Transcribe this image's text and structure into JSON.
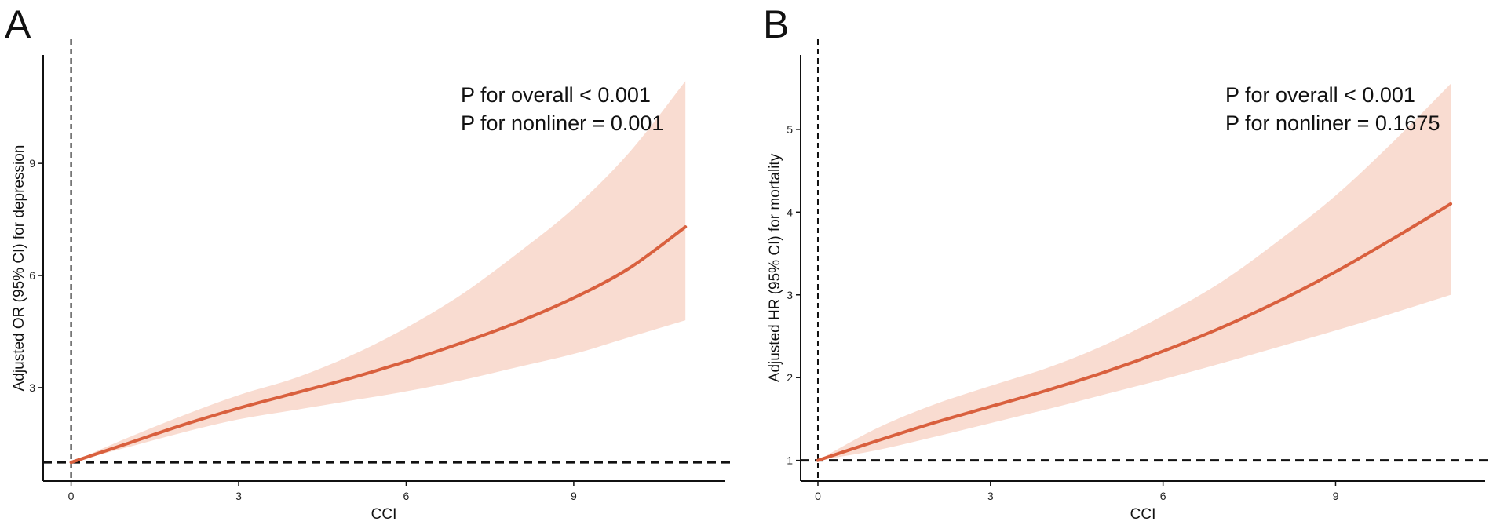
{
  "chart_data": [
    {
      "panel": "A",
      "type": "line",
      "xlabel": "CCI",
      "ylabel": "Adjusted OR (95% CI) for depression",
      "xlim": [
        -0.5,
        11.7
      ],
      "ylim": [
        0.5,
        11.9
      ],
      "xticks": [
        0,
        3,
        6,
        9
      ],
      "yticks": [
        3,
        6,
        9
      ],
      "reference_x": 0,
      "reference_y": 1,
      "annotations": [
        "P for overall < 0.001",
        "P for nonliner = 0.001"
      ],
      "series": [
        {
          "name": "estimate",
          "x": [
            0,
            1,
            2,
            3,
            4,
            5,
            6,
            7,
            8,
            9,
            10,
            11
          ],
          "y": [
            1.0,
            1.5,
            2.0,
            2.45,
            2.85,
            3.25,
            3.7,
            4.2,
            4.75,
            5.4,
            6.2,
            7.3
          ]
        },
        {
          "name": "95% CI lower",
          "x": [
            0,
            1,
            2,
            3,
            4,
            5,
            6,
            7,
            8,
            9,
            10,
            11
          ],
          "y": [
            1.0,
            1.4,
            1.8,
            2.15,
            2.4,
            2.65,
            2.9,
            3.2,
            3.55,
            3.9,
            4.35,
            4.8
          ]
        },
        {
          "name": "95% CI upper",
          "x": [
            0,
            1,
            2,
            3,
            4,
            5,
            6,
            7,
            8,
            9,
            10,
            11
          ],
          "y": [
            1.0,
            1.65,
            2.25,
            2.8,
            3.25,
            3.85,
            4.6,
            5.5,
            6.6,
            7.8,
            9.3,
            11.2
          ]
        }
      ]
    },
    {
      "panel": "B",
      "type": "line",
      "xlabel": "CCI",
      "ylabel": "Adjusted HR (95% CI) for mortality",
      "xlim": [
        -0.3,
        11.6
      ],
      "ylim": [
        0.75,
        5.9
      ],
      "xticks": [
        0,
        3,
        6,
        9
      ],
      "yticks": [
        1,
        2,
        3,
        4,
        5
      ],
      "reference_x": 0,
      "reference_y": 1,
      "annotations": [
        "P for overall < 0.001",
        "P for nonliner = 0.1675"
      ],
      "series": [
        {
          "name": "estimate",
          "x": [
            0,
            1,
            2,
            3,
            4,
            5,
            6,
            7,
            8,
            9,
            10,
            11
          ],
          "y": [
            1.0,
            1.23,
            1.45,
            1.65,
            1.85,
            2.07,
            2.32,
            2.6,
            2.92,
            3.28,
            3.68,
            4.1
          ]
        },
        {
          "name": "95% CI lower",
          "x": [
            0,
            1,
            2,
            3,
            4,
            5,
            6,
            7,
            8,
            9,
            10,
            11
          ],
          "y": [
            1.0,
            1.12,
            1.28,
            1.45,
            1.62,
            1.8,
            1.98,
            2.17,
            2.37,
            2.57,
            2.78,
            3.0
          ]
        },
        {
          "name": "95% CI upper",
          "x": [
            0,
            1,
            2,
            3,
            4,
            5,
            6,
            7,
            8,
            9,
            10,
            11
          ],
          "y": [
            1.0,
            1.38,
            1.67,
            1.9,
            2.12,
            2.4,
            2.75,
            3.15,
            3.65,
            4.2,
            4.85,
            5.55
          ]
        }
      ]
    }
  ],
  "colors": {
    "line": "#d9603e",
    "ci_band": "#f9dcd1",
    "axis": "#111111",
    "reference": "#111111"
  }
}
